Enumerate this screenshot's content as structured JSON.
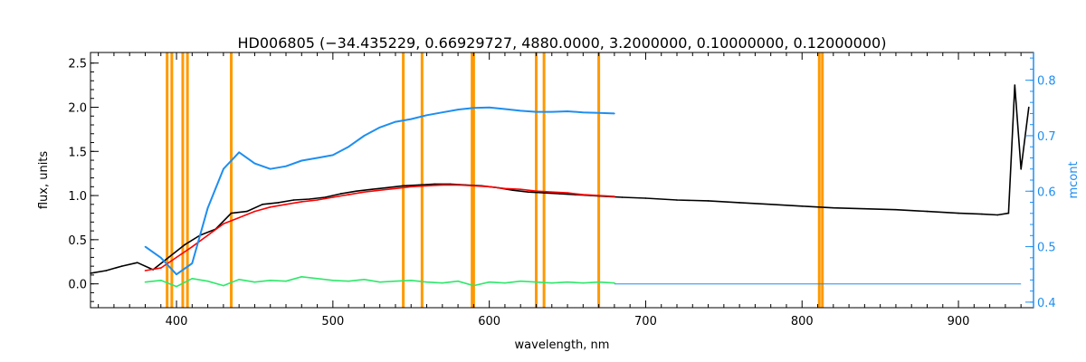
{
  "chart_data": {
    "type": "line",
    "title": "HD006805   (−34.435229, 0.66929727, 4880.0000, 3.2000000, 0.10000000, 0.12000000)",
    "xlabel": "wavelength, nm",
    "ylabel": "flux, units",
    "y2label": "mcont",
    "xlim": [
      345,
      948
    ],
    "ylim": [
      -0.27,
      2.62
    ],
    "y2lim": [
      0.39,
      0.85
    ],
    "x_ticks": [
      {
        "value": 400,
        "label": "400"
      },
      {
        "value": 500,
        "label": "500"
      },
      {
        "value": 600,
        "label": "600"
      },
      {
        "value": 700,
        "label": "700"
      },
      {
        "value": 800,
        "label": "800"
      },
      {
        "value": 900,
        "label": "900"
      }
    ],
    "y_ticks": [
      {
        "value": 0.0,
        "label": "0.0"
      },
      {
        "value": 0.5,
        "label": "0.5"
      },
      {
        "value": 1.0,
        "label": "1.0"
      },
      {
        "value": 1.5,
        "label": "1.5"
      },
      {
        "value": 2.0,
        "label": "2.0"
      },
      {
        "value": 2.5,
        "label": "2.5"
      }
    ],
    "y2_ticks": [
      {
        "value": 0.4,
        "label": "0.4"
      },
      {
        "value": 0.5,
        "label": "0.5"
      },
      {
        "value": 0.6,
        "label": "0.6"
      },
      {
        "value": 0.7,
        "label": "0.7"
      },
      {
        "value": 0.8,
        "label": "0.8"
      }
    ],
    "vertical_lines": [
      394,
      397,
      404,
      407,
      435,
      545,
      557,
      589,
      590,
      630,
      635,
      670,
      811,
      813
    ],
    "series": [
      {
        "role": "observed",
        "color": "#000000",
        "x": [
          345,
          355,
          365,
          375,
          385,
          395,
          405,
          415,
          425,
          435,
          445,
          455,
          465,
          475,
          485,
          495,
          505,
          515,
          525,
          535,
          545,
          555,
          565,
          575,
          585,
          595,
          605,
          615,
          625,
          635,
          645,
          655,
          665,
          675,
          685,
          700,
          720,
          740,
          760,
          780,
          800,
          820,
          840,
          860,
          880,
          900,
          915,
          925,
          932,
          936,
          940,
          945
        ],
        "y": [
          0.12,
          0.15,
          0.2,
          0.24,
          0.16,
          0.3,
          0.44,
          0.55,
          0.62,
          0.8,
          0.82,
          0.9,
          0.92,
          0.95,
          0.96,
          0.98,
          1.02,
          1.05,
          1.07,
          1.09,
          1.11,
          1.12,
          1.13,
          1.13,
          1.12,
          1.11,
          1.09,
          1.06,
          1.04,
          1.03,
          1.02,
          1.01,
          1.0,
          0.99,
          0.98,
          0.97,
          0.95,
          0.94,
          0.92,
          0.9,
          0.88,
          0.86,
          0.85,
          0.84,
          0.82,
          0.8,
          0.79,
          0.78,
          0.8,
          2.25,
          1.3,
          2.0
        ]
      },
      {
        "role": "model fit",
        "color": "#ff0000",
        "x": [
          380,
          390,
          400,
          410,
          420,
          430,
          440,
          450,
          460,
          470,
          480,
          490,
          500,
          510,
          520,
          530,
          540,
          550,
          560,
          570,
          580,
          590,
          600,
          610,
          620,
          630,
          640,
          650,
          660,
          670,
          680
        ],
        "y": [
          0.15,
          0.18,
          0.3,
          0.42,
          0.55,
          0.68,
          0.75,
          0.82,
          0.87,
          0.9,
          0.93,
          0.95,
          0.98,
          1.01,
          1.04,
          1.06,
          1.08,
          1.1,
          1.11,
          1.12,
          1.12,
          1.11,
          1.1,
          1.08,
          1.07,
          1.05,
          1.04,
          1.03,
          1.01,
          1.0,
          0.99
        ]
      },
      {
        "role": "residuals",
        "color": "#2ee86a",
        "x": [
          380,
          390,
          400,
          410,
          420,
          430,
          440,
          450,
          460,
          470,
          480,
          490,
          500,
          510,
          520,
          530,
          540,
          550,
          560,
          570,
          580,
          590,
          600,
          610,
          620,
          630,
          640,
          650,
          660,
          670,
          680
        ],
        "y": [
          0.02,
          0.04,
          -0.03,
          0.06,
          0.03,
          -0.02,
          0.05,
          0.02,
          0.04,
          0.03,
          0.08,
          0.06,
          0.04,
          0.03,
          0.05,
          0.02,
          0.03,
          0.04,
          0.02,
          0.01,
          0.03,
          -0.02,
          0.02,
          0.01,
          0.03,
          0.02,
          0.01,
          0.02,
          0.01,
          0.02,
          0.01
        ]
      },
      {
        "role": "continuum (mcont)",
        "axis": "right",
        "color": "#1e8ef0",
        "x": [
          380,
          390,
          400,
          410,
          420,
          430,
          440,
          450,
          460,
          470,
          480,
          490,
          500,
          510,
          520,
          530,
          540,
          550,
          560,
          570,
          580,
          590,
          600,
          610,
          620,
          630,
          640,
          650,
          660,
          670,
          680
        ],
        "y": [
          0.5,
          0.48,
          0.45,
          0.47,
          0.57,
          0.64,
          0.67,
          0.65,
          0.64,
          0.645,
          0.655,
          0.66,
          0.665,
          0.68,
          0.7,
          0.715,
          0.725,
          0.73,
          0.737,
          0.742,
          0.747,
          0.75,
          0.751,
          0.748,
          0.745,
          0.743,
          0.743,
          0.744,
          0.742,
          0.741,
          0.74
        ]
      },
      {
        "role": "residual baseline",
        "color": "#1e8ef0",
        "x": [
          680,
          940
        ],
        "y": [
          0.0,
          0.0
        ]
      }
    ]
  }
}
